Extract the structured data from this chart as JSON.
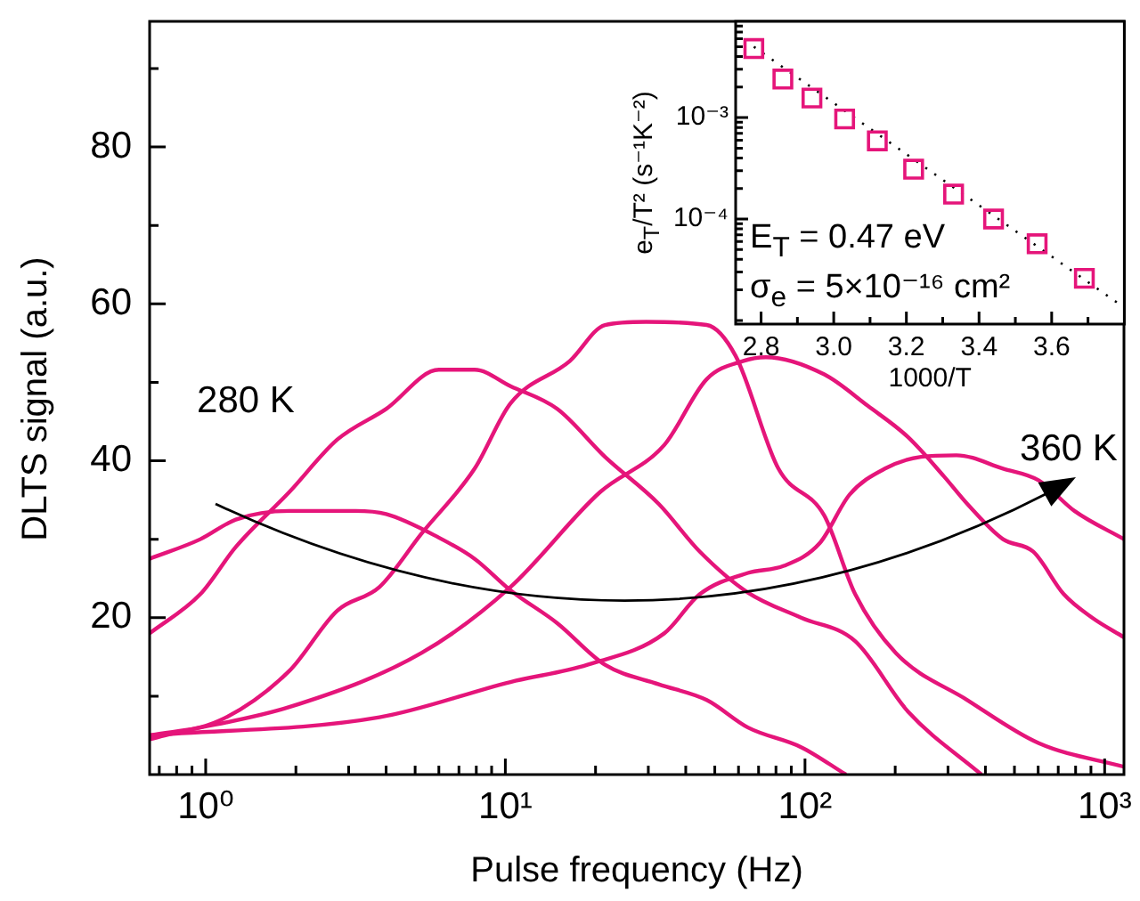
{
  "chart_data": [
    {
      "type": "line",
      "xlabel": "Pulse frequency (Hz)",
      "ylabel": "DLTS signal (a.u.)",
      "log": "x",
      "marker": "none",
      "line_style": "solid",
      "xlim": [
        0.65,
        1160
      ],
      "xticks": [
        {
          "value": 0.7,
          "label": null
        },
        {
          "value": 0.8,
          "label": null
        },
        {
          "value": 0.9,
          "label": null
        },
        {
          "value": 1,
          "label": "10⁰"
        },
        {
          "value": 2,
          "label": null
        },
        {
          "value": 3,
          "label": null
        },
        {
          "value": 4,
          "label": null
        },
        {
          "value": 5,
          "label": null
        },
        {
          "value": 6,
          "label": null
        },
        {
          "value": 7,
          "label": null
        },
        {
          "value": 8,
          "label": null
        },
        {
          "value": 9,
          "label": null
        },
        {
          "value": 10,
          "label": "10¹"
        },
        {
          "value": 20,
          "label": null
        },
        {
          "value": 30,
          "label": null
        },
        {
          "value": 40,
          "label": null
        },
        {
          "value": 50,
          "label": null
        },
        {
          "value": 60,
          "label": null
        },
        {
          "value": 70,
          "label": null
        },
        {
          "value": 80,
          "label": null
        },
        {
          "value": 90,
          "label": null
        },
        {
          "value": 100,
          "label": "10²"
        },
        {
          "value": 200,
          "label": null
        },
        {
          "value": 300,
          "label": null
        },
        {
          "value": 400,
          "label": null
        },
        {
          "value": 500,
          "label": null
        },
        {
          "value": 600,
          "label": null
        },
        {
          "value": 700,
          "label": null
        },
        {
          "value": 800,
          "label": null
        },
        {
          "value": 900,
          "label": null
        },
        {
          "value": 1000,
          "label": "10³"
        }
      ],
      "ylim": [
        0,
        96
      ],
      "yticks": [
        {
          "value": 10,
          "label": null
        },
        20,
        {
          "value": 30,
          "label": null
        },
        40,
        {
          "value": 50,
          "label": null
        },
        60,
        {
          "value": 70,
          "label": null
        },
        80,
        {
          "value": 90,
          "label": null
        }
      ],
      "series": [
        {
          "color": "#e5157a",
          "x": [
            0.65,
            0.96,
            1.26,
            1.9,
            3.16,
            4.0,
            6.0,
            7.9,
            10.4,
            14.9,
            21.5,
            32.5,
            47,
            64.5,
            97,
            137
          ],
          "values": [
            27.5,
            30,
            32.5,
            33.6,
            33.6,
            33.2,
            30.2,
            27.5,
            23.5,
            19.3,
            14,
            11.5,
            9.5,
            6,
            3.5,
            0
          ]
        },
        {
          "color": "#e5157a",
          "x": [
            0.65,
            0.96,
            1.26,
            1.9,
            2.75,
            4.0,
            6.0,
            7.9,
            10.4,
            14.9,
            21.5,
            32.5,
            44.6,
            64.5,
            97,
            147,
            221,
            388
          ],
          "values": [
            18,
            23,
            29,
            36,
            42.7,
            46.6,
            51.6,
            51.6,
            49.5,
            46.6,
            40.5,
            34.5,
            28.4,
            23.2,
            20,
            17,
            8,
            0
          ]
        },
        {
          "color": "#e5157a",
          "x": [
            0.65,
            1.1,
            1.9,
            2.75,
            3.8,
            5.25,
            7.9,
            10.4,
            16.4,
            21.5,
            29.5,
            47,
            58.6,
            81.5,
            116,
            147,
            201,
            348,
            603,
            1160
          ],
          "values": [
            5,
            6.8,
            13.2,
            20.9,
            23.9,
            30.7,
            39,
            47.3,
            52.7,
            57.3,
            57.7,
            57.3,
            53.4,
            39,
            33,
            23,
            15.5,
            9.5,
            4,
            1
          ]
        },
        {
          "color": "#e5157a",
          "x": [
            0.65,
            0.77,
            1.9,
            5.25,
            10.4,
            20.7,
            33.9,
            47,
            62,
            74,
            116,
            162,
            221,
            291,
            348,
            458,
            578,
            730,
            908,
            1160
          ],
          "values": [
            4.5,
            5.2,
            8.6,
            15.5,
            23.9,
            36,
            42,
            50.4,
            52.7,
            53.2,
            51,
            47,
            43,
            38,
            34.5,
            30,
            28.4,
            23,
            20,
            17.5
          ]
        },
        {
          "color": "#e5157a",
          "x": [
            0.65,
            3.8,
            10.4,
            18.8,
            33.9,
            44.6,
            64.5,
            85,
            112,
            141,
            185,
            244,
            320,
            458,
            603,
            793,
            1160
          ],
          "values": [
            5,
            7.3,
            11.8,
            14,
            18,
            23,
            25.7,
            26.6,
            29.5,
            35.7,
            39,
            40.5,
            40.7,
            39,
            37.5,
            33.6,
            30
          ]
        }
      ],
      "annotations": [
        "280 K",
        "360 K"
      ]
    },
    {
      "type": "scatter",
      "xlabel": "1000/T",
      "ylabel": "e$_{T}$/T² (s⁻¹K⁻²)",
      "log": "y",
      "marker": "square",
      "xlim": [
        2.73,
        3.8
      ],
      "xticks": [
        2.8,
        {
          "value": 2.9,
          "label": null
        },
        {
          "value": 3.0,
          "label": "3.0"
        },
        {
          "value": 3.1,
          "label": null
        },
        3.2,
        {
          "value": 3.3,
          "label": null
        },
        3.4,
        {
          "value": 3.5,
          "label": null
        },
        3.6,
        {
          "value": 3.7,
          "label": null
        }
      ],
      "ylim": [
        9.2e-06,
        0.0089
      ],
      "yticks": [
        {
          "value": 1e-05,
          "label": null
        },
        {
          "value": 2e-05,
          "label": null
        },
        {
          "value": 3e-05,
          "label": null
        },
        {
          "value": 4e-05,
          "label": null
        },
        {
          "value": 5e-05,
          "label": null
        },
        {
          "value": 6e-05,
          "label": null
        },
        {
          "value": 7e-05,
          "label": null
        },
        {
          "value": 8e-05,
          "label": null
        },
        {
          "value": 9e-05,
          "label": null
        },
        {
          "value": 0.0001,
          "label": "10⁻⁴"
        },
        {
          "value": 0.0002,
          "label": null
        },
        {
          "value": 0.0003,
          "label": null
        },
        {
          "value": 0.0004,
          "label": null
        },
        {
          "value": 0.0005,
          "label": null
        },
        {
          "value": 0.0006,
          "label": null
        },
        {
          "value": 0.0007,
          "label": null
        },
        {
          "value": 0.0008,
          "label": null
        },
        {
          "value": 0.0009,
          "label": null
        },
        {
          "value": 0.001,
          "label": "10⁻³"
        },
        {
          "value": 0.002,
          "label": null
        },
        {
          "value": 0.003,
          "label": null
        },
        {
          "value": 0.004,
          "label": null
        },
        {
          "value": 0.005,
          "label": null
        },
        {
          "value": 0.006,
          "label": null
        },
        {
          "value": 0.007,
          "label": null
        },
        {
          "value": 0.008,
          "label": null
        }
      ],
      "series": [
        {
          "color": "#e5157a",
          "x": [
            2.78,
            2.86,
            2.94,
            3.03,
            3.12,
            3.22,
            3.33,
            3.44,
            3.56,
            3.69
          ],
          "values": [
            0.0048,
            0.0024,
            0.00156,
            0.00097,
            0.00059,
            0.00031,
            0.000176,
            0.0001,
            5.7e-05,
            2.6e-05
          ]
        },
        {
          "type": "line",
          "color": "#000000",
          "line_style": "dotted",
          "marker": "none",
          "x": [
            2.78,
            3.78
          ],
          "values": [
            0.005,
            1.5e-05
          ]
        }
      ],
      "annotations": [
        "E$_{T}$ = 0.47 eV",
        "σ$_{e}$ = 5×10⁻¹⁶ cm²"
      ]
    }
  ]
}
